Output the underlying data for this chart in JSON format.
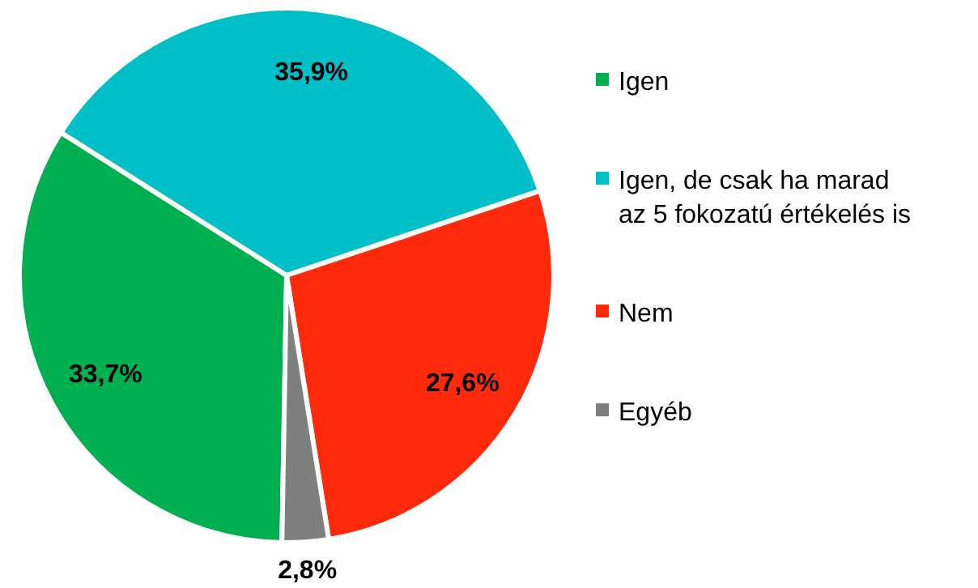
{
  "chart_data": {
    "type": "pie",
    "categories": [
      "Igen",
      "Igen, de csak ha marad az 5 fokozatú értékelés is",
      "Nem",
      "Egyéb"
    ],
    "values": [
      33.7,
      35.9,
      27.6,
      2.8
    ],
    "colors": [
      "#00b050",
      "#00bfc6",
      "#ff2a0c",
      "#7f7f7f"
    ],
    "value_labels": [
      "33,7%",
      "35,9%",
      "27,6%",
      "2,8%"
    ],
    "legend": "right"
  }
}
